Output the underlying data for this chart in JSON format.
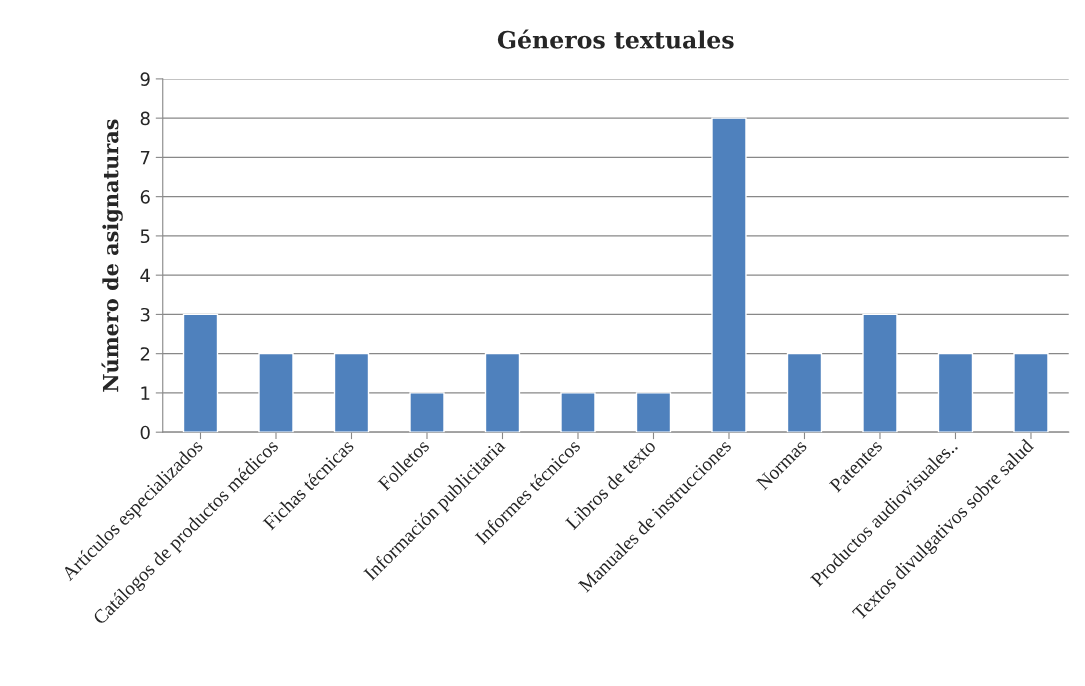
{
  "chart_data": {
    "type": "bar",
    "title": "Géneros textuales",
    "ylabel": "Número de asignaturas",
    "categories": [
      "Artículos especializados",
      "Catálogos de productos médicos",
      "Fichas técnicas",
      "Folletos",
      "Información publicitaria",
      "Informes técnicos",
      "Libros de texto",
      "Manuales de instrucciones",
      "Normas",
      "Patentes",
      "Productos audiovisuales..",
      "Textos divulgativos sobre salud"
    ],
    "values": [
      3,
      2,
      2,
      1,
      2,
      1,
      1,
      8,
      2,
      3,
      2,
      2
    ],
    "color": "#4f81bd",
    "ylim": [
      0,
      9
    ],
    "yticks": [
      0,
      1,
      2,
      3,
      4,
      5,
      6,
      7,
      8,
      9
    ],
    "grid": "y",
    "legend": false
  }
}
